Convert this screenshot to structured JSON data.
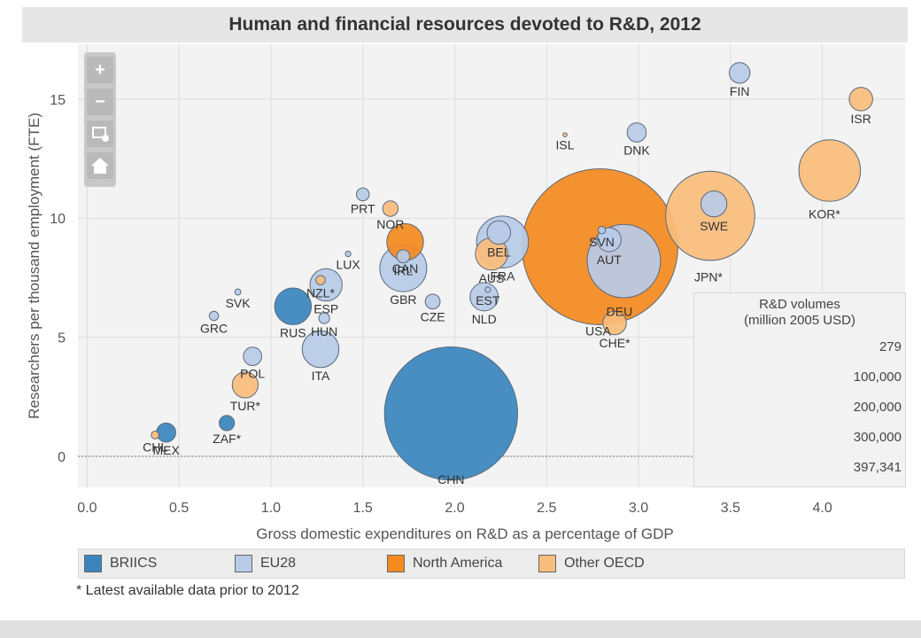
{
  "chart_data": {
    "type": "scatter",
    "title": "Human and financial resources devoted to R&D, 2012",
    "xlabel": "Gross domestic expenditures on  R&D as a percentage of GDP",
    "ylabel": "Researchers per thousand employment (FTE)",
    "xlim": [
      -0.05,
      4.45
    ],
    "ylim": [
      -1.3,
      17.3
    ],
    "x_ticks": [
      "0.0",
      "0.5",
      "1.0",
      "1.5",
      "2.0",
      "2.5",
      "3.0",
      "3.5",
      "4.0"
    ],
    "y_ticks": [
      "0",
      "5",
      "10",
      "15"
    ],
    "grid": true,
    "bubble_size": "R&D volumes (million 2005 USD)",
    "series": [
      {
        "name": "BRIICS",
        "color": "#3a85be",
        "points": [
          {
            "label": "CHN",
            "x": 1.98,
            "y": 1.8,
            "volume": 290000
          },
          {
            "label": "RUS",
            "x": 1.12,
            "y": 6.3,
            "volume": 22000
          },
          {
            "label": "ZAF*",
            "x": 0.76,
            "y": 1.4,
            "volume": 3800
          },
          {
            "label": "MEX",
            "x": 0.43,
            "y": 1.0,
            "volume": 6000
          }
        ]
      },
      {
        "name": "EU28",
        "color": "#b9cbe8",
        "points": [
          {
            "label": "FIN",
            "x": 3.55,
            "y": 16.1,
            "volume": 7000
          },
          {
            "label": "DNK",
            "x": 2.99,
            "y": 13.6,
            "volume": 6000
          },
          {
            "label": "SWE",
            "x": 3.41,
            "y": 10.6,
            "volume": 11000
          },
          {
            "label": "AUT",
            "x": 2.84,
            "y": 9.1,
            "volume": 9500
          },
          {
            "label": "DEU",
            "x": 2.92,
            "y": 8.2,
            "volume": 88000
          },
          {
            "label": "SVN",
            "x": 2.8,
            "y": 9.5,
            "volume": 900
          },
          {
            "label": "BEL",
            "x": 2.24,
            "y": 9.4,
            "volume": 9000
          },
          {
            "label": "FRA",
            "x": 2.26,
            "y": 9.0,
            "volume": 44000
          },
          {
            "label": "EST",
            "x": 2.18,
            "y": 7.0,
            "volume": 500
          },
          {
            "label": "NLD",
            "x": 2.16,
            "y": 6.7,
            "volume": 13000
          },
          {
            "label": "IRL",
            "x": 1.72,
            "y": 8.4,
            "volume": 2800
          },
          {
            "label": "GBR",
            "x": 1.72,
            "y": 7.9,
            "volume": 36000
          },
          {
            "label": "CZE",
            "x": 1.88,
            "y": 6.5,
            "volume": 3600
          },
          {
            "label": "PRT",
            "x": 1.5,
            "y": 11.0,
            "volume": 2700
          },
          {
            "label": "LUX",
            "x": 1.42,
            "y": 8.5,
            "volume": 500
          },
          {
            "label": "ESP",
            "x": 1.3,
            "y": 7.2,
            "volume": 17000
          },
          {
            "label": "HUN",
            "x": 1.29,
            "y": 5.8,
            "volume": 1900
          },
          {
            "label": "ITA",
            "x": 1.27,
            "y": 4.5,
            "volume": 22000
          },
          {
            "label": "SVK",
            "x": 0.82,
            "y": 6.9,
            "volume": 600
          },
          {
            "label": "GRC",
            "x": 0.69,
            "y": 5.9,
            "volume": 1400
          },
          {
            "label": "POL",
            "x": 0.9,
            "y": 4.2,
            "volume": 5500
          }
        ]
      },
      {
        "name": "North America",
        "color": "#f48a20",
        "points": [
          {
            "label": "USA",
            "x": 2.79,
            "y": 8.8,
            "volume": 397341
          },
          {
            "label": "CAN",
            "x": 1.73,
            "y": 9.0,
            "volume": 22000
          }
        ]
      },
      {
        "name": "Other OECD",
        "color": "#fbbd7c",
        "points": [
          {
            "label": "ISR",
            "x": 4.21,
            "y": 15.0,
            "volume": 9000
          },
          {
            "label": "KOR*",
            "x": 4.04,
            "y": 12.0,
            "volume": 62000
          },
          {
            "label": "JPN*",
            "x": 3.39,
            "y": 10.1,
            "volume": 130000
          },
          {
            "label": "ISL",
            "x": 2.6,
            "y": 13.5,
            "volume": 279
          },
          {
            "label": "NOR",
            "x": 1.65,
            "y": 10.4,
            "volume": 3900
          },
          {
            "label": "AUS",
            "x": 2.2,
            "y": 8.5,
            "volume": 17000
          },
          {
            "label": "CHE*",
            "x": 2.87,
            "y": 5.6,
            "volume": 9000
          },
          {
            "label": "NZL*",
            "x": 1.27,
            "y": 7.4,
            "volume": 1400
          },
          {
            "label": "TUR*",
            "x": 0.86,
            "y": 3.0,
            "volume": 11000
          },
          {
            "label": "CHL",
            "x": 0.37,
            "y": 0.9,
            "volume": 1000
          }
        ]
      }
    ],
    "size_legend": {
      "title": [
        "R&D volumes",
        "(million 2005 USD)"
      ],
      "entries": [
        {
          "label": "279",
          "value": 279
        },
        {
          "label": "100,000",
          "value": 100000
        },
        {
          "label": "200,000",
          "value": 200000
        },
        {
          "label": "300,000",
          "value": 300000
        },
        {
          "label": "397,341",
          "value": 397341
        }
      ]
    }
  },
  "legend": [
    {
      "label": "BRIICS",
      "color": "#3a85be"
    },
    {
      "label": "EU28",
      "color": "#b9cbe8"
    },
    {
      "label": "North America",
      "color": "#f48a20"
    },
    {
      "label": "Other OECD",
      "color": "#fbbd7c"
    }
  ],
  "toolbar": {
    "zoom_in_icon": "plus-icon",
    "zoom_out_icon": "minus-icon",
    "zoom_box_icon": "zoom-rectangle-icon",
    "home_icon": "home-icon"
  },
  "footnote": "* Latest available data prior to 2012"
}
